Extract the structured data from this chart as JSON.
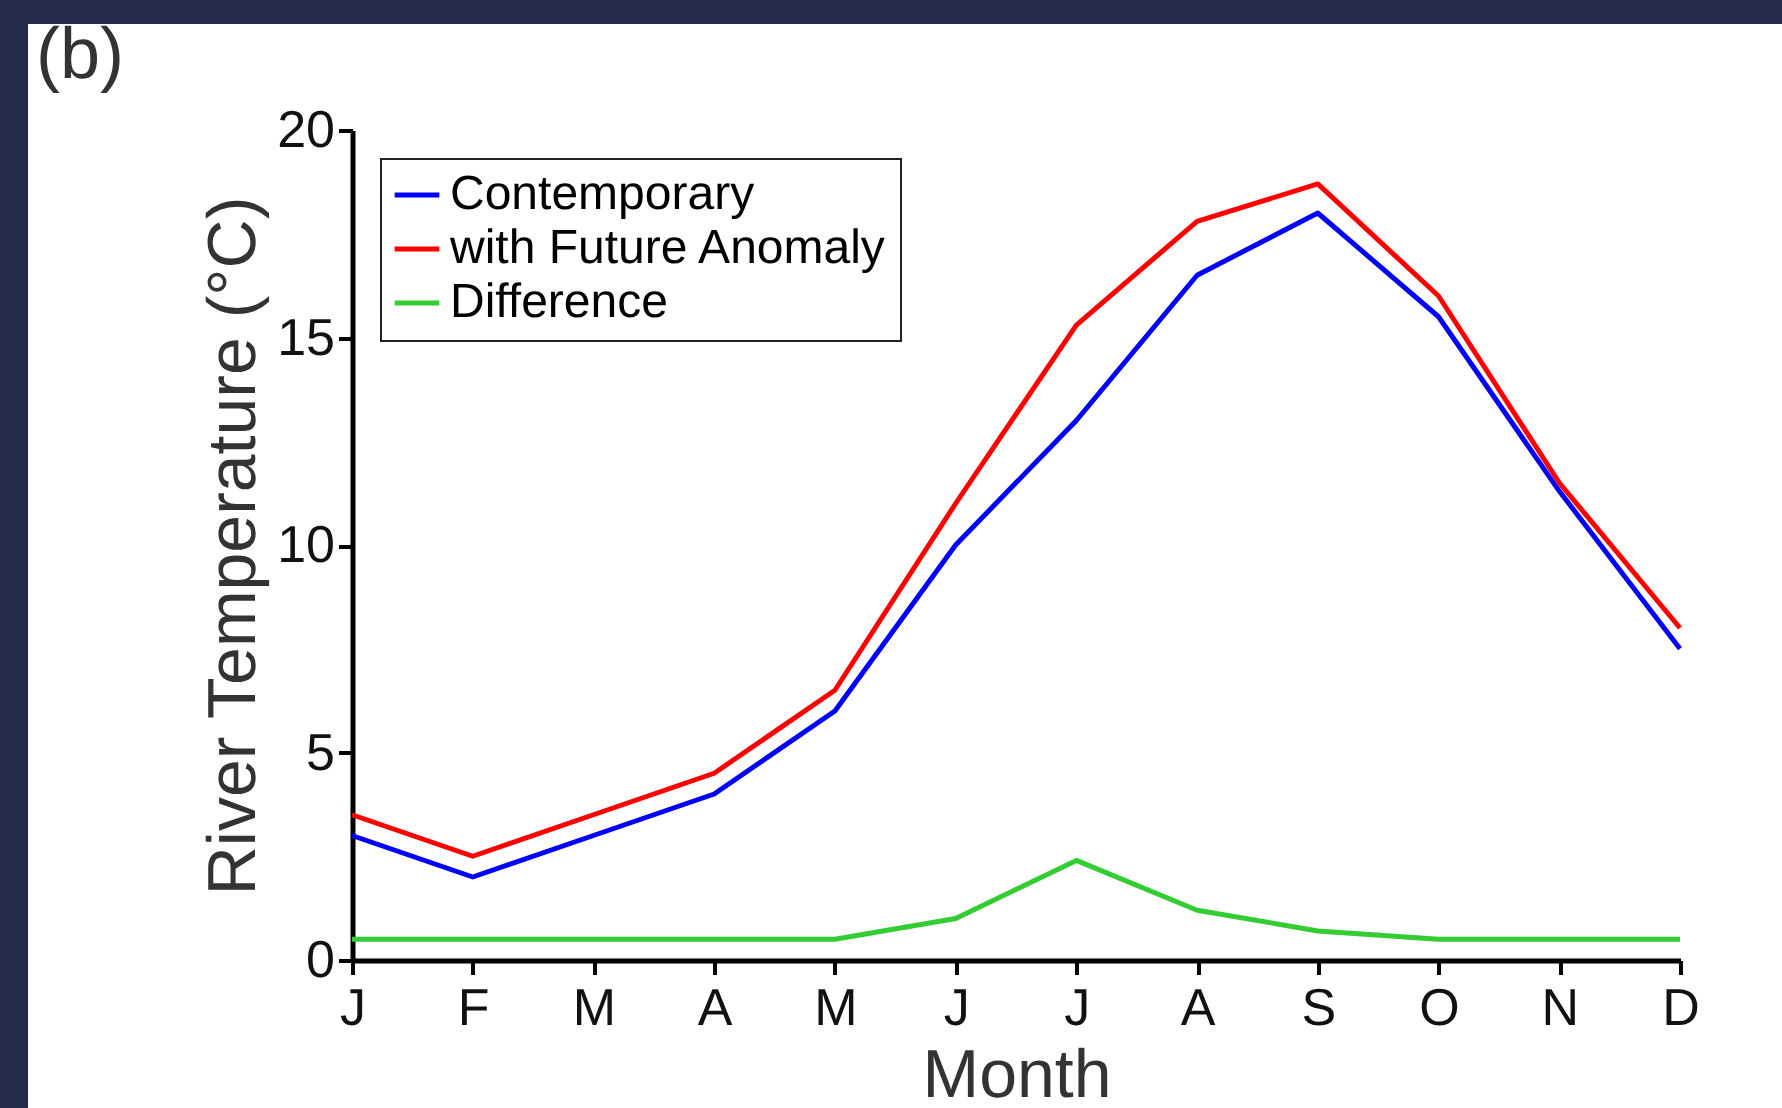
{
  "chart_data": {
    "type": "line",
    "xlabel": "Month",
    "ylabel": "River Temperature (°C)",
    "annotations": [
      "(b)"
    ],
    "categories": [
      "J",
      "F",
      "M",
      "A",
      "M",
      "J",
      "J",
      "A",
      "S",
      "O",
      "N",
      "D"
    ],
    "ylim": [
      0,
      20
    ],
    "yticks": [
      0,
      5,
      10,
      15,
      20
    ],
    "legend": "top left",
    "grid": false,
    "series": [
      {
        "name": "Contemporary",
        "color": "#0000ff",
        "values": [
          3.0,
          2.0,
          3.0,
          4.0,
          6.0,
          10.0,
          13.0,
          16.5,
          18.0,
          15.5,
          11.3,
          7.5
        ]
      },
      {
        "name": "with Future Anomaly",
        "color": "#ff0000",
        "values": [
          3.5,
          2.5,
          3.5,
          4.5,
          6.5,
          11.0,
          15.3,
          17.8,
          18.7,
          16.0,
          11.5,
          8.0
        ]
      },
      {
        "name": "Difference",
        "color": "#33cc33",
        "values": [
          0.5,
          0.5,
          0.5,
          0.5,
          0.5,
          1.0,
          2.4,
          1.2,
          0.7,
          0.5,
          0.5,
          0.5
        ]
      }
    ]
  }
}
